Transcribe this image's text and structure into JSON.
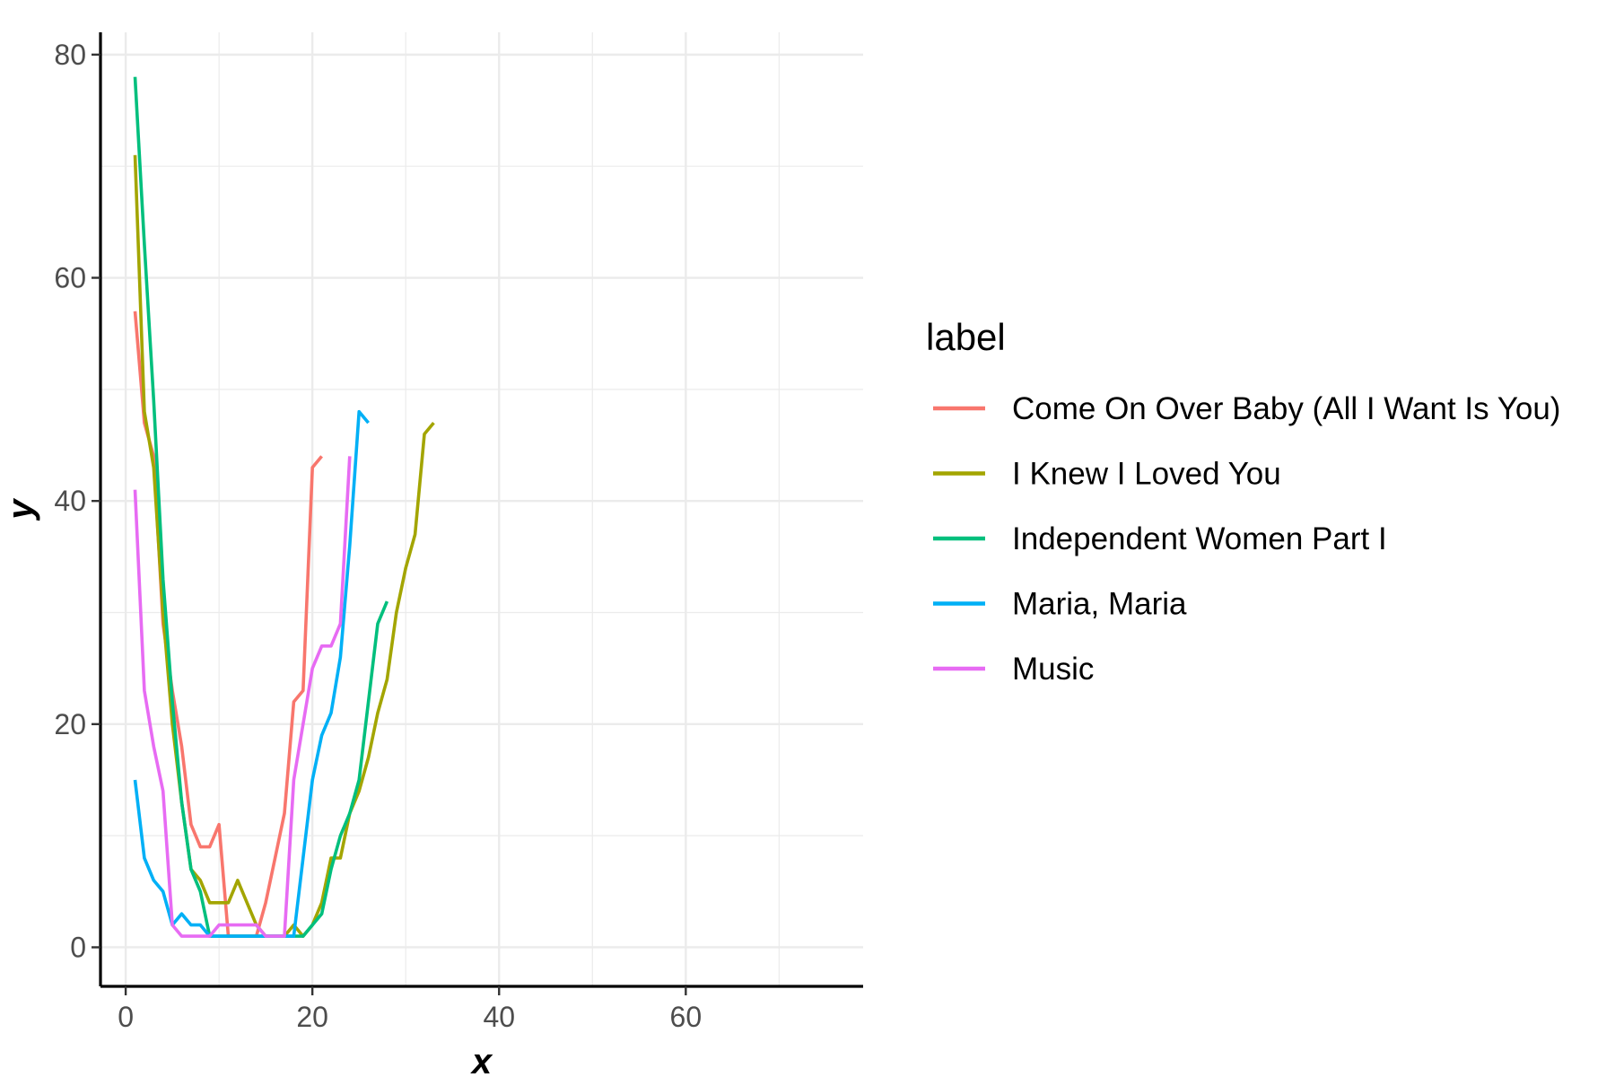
{
  "chart_data": {
    "type": "line",
    "title": "",
    "xlabel": "x",
    "ylabel": "y",
    "xlim": [
      -2.7,
      79
    ],
    "ylim": [
      -3.5,
      82
    ],
    "x_ticks": [
      0,
      20,
      40,
      60
    ],
    "y_ticks": [
      0,
      20,
      40,
      60,
      80
    ],
    "grid": true,
    "legend_title": "label",
    "legend_position": "right",
    "series": [
      {
        "name": "Come On Over Baby (All I Want Is You)",
        "color": "#F8766D",
        "x": [
          1,
          2,
          3,
          4,
          5,
          6,
          7,
          8,
          9,
          10,
          11,
          12,
          13,
          14,
          15,
          16,
          17,
          18,
          19,
          20,
          21
        ],
        "y": [
          57,
          47,
          44,
          29,
          23,
          18,
          11,
          9,
          9,
          11,
          1,
          1,
          1,
          1,
          4,
          8,
          12,
          22,
          23,
          43,
          44
        ]
      },
      {
        "name": "I Knew I Loved You",
        "color": "#A3A500",
        "x": [
          1,
          2,
          3,
          4,
          5,
          6,
          7,
          8,
          9,
          10,
          11,
          12,
          13,
          14,
          15,
          16,
          17,
          18,
          19,
          20,
          21,
          22,
          23,
          24,
          25,
          26,
          27,
          28,
          29,
          30,
          31,
          32,
          33
        ],
        "y": [
          71,
          48,
          43,
          30,
          20,
          13,
          7,
          6,
          4,
          4,
          4,
          6,
          4,
          2,
          1,
          1,
          1,
          2,
          1,
          2,
          4,
          8,
          8,
          12,
          14,
          17,
          21,
          24,
          30,
          34,
          37,
          46,
          47
        ]
      },
      {
        "name": "Independent Women Part I",
        "color": "#00BF7D",
        "x": [
          1,
          2,
          3,
          4,
          5,
          6,
          7,
          8,
          9,
          10,
          11,
          12,
          13,
          14,
          15,
          16,
          17,
          18,
          19,
          20,
          21,
          22,
          23,
          24,
          25,
          26,
          27,
          28
        ],
        "y": [
          78,
          63,
          49,
          33,
          22,
          13,
          7,
          5,
          1,
          1,
          1,
          1,
          1,
          1,
          1,
          1,
          1,
          1,
          1,
          2,
          3,
          7,
          10,
          12,
          15,
          22,
          29,
          31
        ]
      },
      {
        "name": "Maria, Maria",
        "color": "#00B0F6",
        "x": [
          1,
          2,
          3,
          4,
          5,
          6,
          7,
          8,
          9,
          10,
          11,
          12,
          13,
          14,
          15,
          16,
          17,
          18,
          19,
          20,
          21,
          22,
          23,
          24,
          25,
          26
        ],
        "y": [
          15,
          8,
          6,
          5,
          2,
          3,
          2,
          2,
          1,
          1,
          1,
          1,
          1,
          1,
          1,
          1,
          1,
          1,
          8,
          15,
          19,
          21,
          26,
          36,
          48,
          47
        ]
      },
      {
        "name": "Music",
        "color": "#E76BF3",
        "x": [
          1,
          2,
          3,
          4,
          5,
          6,
          7,
          8,
          9,
          10,
          11,
          12,
          13,
          14,
          15,
          16,
          17,
          18,
          19,
          20,
          21,
          22,
          23,
          24
        ],
        "y": [
          41,
          23,
          18,
          14,
          2,
          1,
          1,
          1,
          1,
          2,
          2,
          2,
          2,
          2,
          1,
          1,
          1,
          15,
          20,
          25,
          27,
          27,
          29,
          44
        ]
      }
    ]
  }
}
